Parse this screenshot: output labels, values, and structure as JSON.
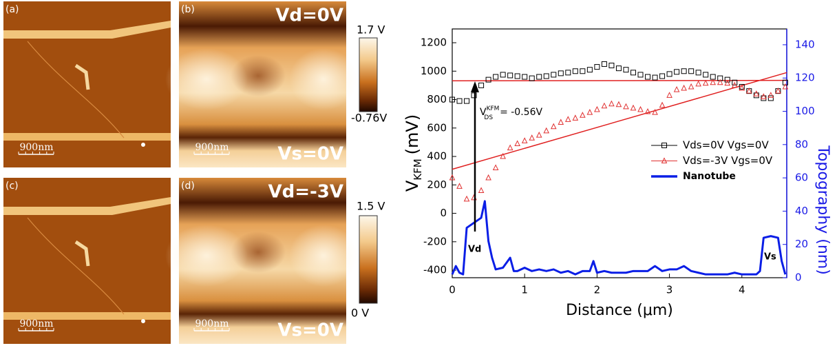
{
  "panels": [
    {
      "label": "(a)",
      "scale_bar": "900nm"
    },
    {
      "label": "(b)",
      "scale_bar": "900nm",
      "top_text": "Vd=0V",
      "bottom_text": "Vs=0V"
    },
    {
      "label": "(c)",
      "scale_bar": "900nm"
    },
    {
      "label": "(d)",
      "scale_bar": "900nm",
      "top_text": "Vd=-3V",
      "bottom_text": "Vs=0V"
    }
  ],
  "colorbars": [
    {
      "max_label": "1.7 V",
      "min_label": "-0.76V"
    },
    {
      "max_label": "1.5 V",
      "min_label": "0 V"
    }
  ],
  "chart_data": {
    "type": "line",
    "x_label": "Distance (μm)",
    "y_label": {
      "symbol": "V",
      "subscript": "KFM",
      "unit": "(mV)"
    },
    "y2_label": "Topography (nm)",
    "xlim": [
      0,
      4.62
    ],
    "xticks": [
      0,
      1,
      2,
      3,
      4
    ],
    "ylim": [
      -453,
      1297
    ],
    "yticks": [
      -400,
      -200,
      0,
      200,
      400,
      600,
      800,
      1000,
      1200
    ],
    "y2lim": [
      0,
      149.5
    ],
    "y2ticks": [
      0,
      20,
      40,
      60,
      80,
      100,
      120,
      140
    ],
    "legend": "right",
    "annotations": {
      "arrow_label": {
        "symbol": "V",
        "subscript": "DS",
        "superscript": "KFM",
        "text": "= -0.56V"
      },
      "drain": "Vd",
      "source": "Vs"
    },
    "series": [
      {
        "name": "Vds=0V Vgs=0V",
        "color": "#000000",
        "marker": "square",
        "x": [
          0,
          0.1,
          0.2,
          0.3,
          0.4,
          0.5,
          0.6,
          0.7,
          0.8,
          0.9,
          1.0,
          1.1,
          1.2,
          1.3,
          1.4,
          1.5,
          1.6,
          1.7,
          1.8,
          1.9,
          2.0,
          2.1,
          2.2,
          2.3,
          2.4,
          2.5,
          2.6,
          2.7,
          2.8,
          2.9,
          3.0,
          3.1,
          3.2,
          3.3,
          3.4,
          3.5,
          3.6,
          3.7,
          3.8,
          3.9,
          4.0,
          4.1,
          4.2,
          4.3,
          4.4,
          4.5,
          4.6
        ],
        "values": [
          800,
          790,
          790,
          830,
          900,
          940,
          960,
          975,
          970,
          965,
          960,
          950,
          960,
          965,
          975,
          985,
          990,
          1000,
          1000,
          1010,
          1030,
          1050,
          1040,
          1020,
          1010,
          990,
          975,
          960,
          955,
          965,
          980,
          995,
          1000,
          1000,
          990,
          975,
          960,
          950,
          940,
          920,
          890,
          860,
          830,
          810,
          810,
          860,
          920
        ]
      },
      {
        "name": "Vds=-3V Vgs=0V",
        "color": "#e03030",
        "marker": "triangle",
        "x": [
          0,
          0.1,
          0.2,
          0.3,
          0.4,
          0.5,
          0.6,
          0.7,
          0.8,
          0.9,
          1.0,
          1.1,
          1.2,
          1.3,
          1.4,
          1.5,
          1.6,
          1.7,
          1.8,
          1.9,
          2.0,
          2.1,
          2.2,
          2.3,
          2.4,
          2.5,
          2.6,
          2.7,
          2.8,
          2.9,
          3.0,
          3.1,
          3.2,
          3.3,
          3.4,
          3.5,
          3.6,
          3.7,
          3.8,
          3.9,
          4.0,
          4.1,
          4.2,
          4.3,
          4.4,
          4.5,
          4.6
        ],
        "values": [
          250,
          190,
          100,
          110,
          160,
          250,
          320,
          400,
          460,
          490,
          510,
          530,
          550,
          580,
          610,
          640,
          660,
          670,
          690,
          710,
          730,
          755,
          770,
          765,
          750,
          740,
          730,
          715,
          710,
          760,
          830,
          870,
          880,
          890,
          910,
          915,
          920,
          920,
          915,
          900,
          880,
          860,
          840,
          820,
          830,
          860,
          890
        ]
      },
      {
        "name": "Nanotube",
        "color": "#0a1ee6",
        "axis": "y2",
        "x": [
          0,
          0.05,
          0.1,
          0.15,
          0.2,
          0.3,
          0.4,
          0.45,
          0.5,
          0.55,
          0.6,
          0.7,
          0.8,
          0.85,
          0.9,
          1.0,
          1.1,
          1.2,
          1.3,
          1.4,
          1.5,
          1.6,
          1.7,
          1.8,
          1.9,
          1.95,
          2.0,
          2.1,
          2.2,
          2.3,
          2.4,
          2.5,
          2.6,
          2.7,
          2.8,
          2.9,
          3.0,
          3.1,
          3.2,
          3.3,
          3.4,
          3.5,
          3.6,
          3.7,
          3.8,
          3.9,
          4.0,
          4.1,
          4.2,
          4.25,
          4.3,
          4.4,
          4.5,
          4.55,
          4.6
        ],
        "values": [
          2,
          7,
          3,
          2,
          30,
          33,
          36,
          46,
          22,
          12,
          5,
          6,
          12,
          4,
          4,
          6,
          4,
          5,
          4,
          5,
          3,
          4,
          2,
          4,
          4,
          10,
          3,
          4,
          3,
          3,
          3,
          4,
          4,
          4,
          7,
          4,
          5,
          5,
          7,
          4,
          3,
          2,
          2,
          2,
          2,
          3,
          2,
          2,
          2,
          4,
          24,
          25,
          24,
          10,
          2
        ]
      }
    ],
    "fit_lines": [
      {
        "color": "#e02020",
        "x": [
          0,
          4.62
        ],
        "y": [
          932,
          935
        ]
      },
      {
        "color": "#e02020",
        "x": [
          0,
          4.62
        ],
        "y": [
          310,
          990
        ]
      }
    ]
  }
}
